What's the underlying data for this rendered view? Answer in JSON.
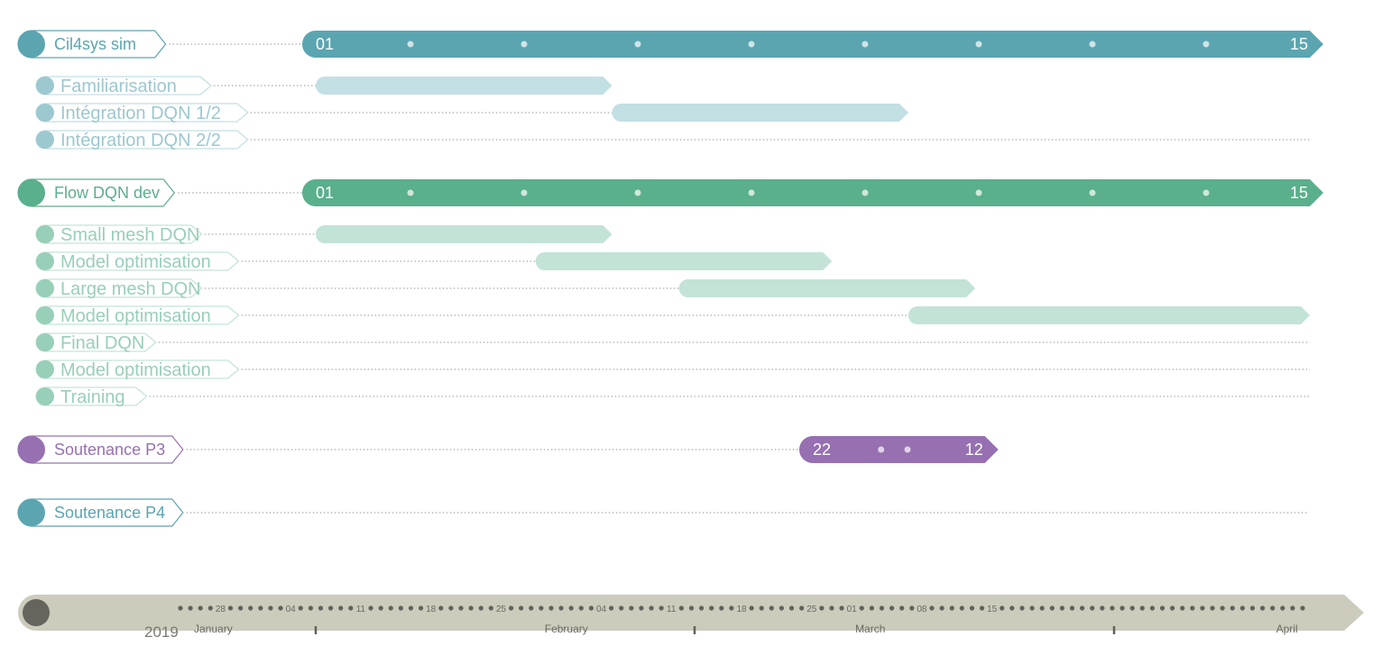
{
  "colors": {
    "teal": "#5ba5b0",
    "teal_light": "#c2dfe3",
    "teal_label_light": "#9cc8cf",
    "green": "#5aaf8c",
    "green_light": "#c3e3d7",
    "green_label_light": "#98cfb8",
    "purple": "#9670b1",
    "timeline_band": "#cccbbc",
    "timeline_dot": "#626058",
    "timeline_text": "#6a6860"
  },
  "groups": [
    {
      "label": "Cil4sys sim",
      "color": "teal",
      "bar": {
        "start": "2019-01-01",
        "end": "2019-04-15",
        "start_label": "01",
        "end_label": "15",
        "tick_count": 8
      },
      "tasks": [
        {
          "label": "Familiarisation",
          "start": "2019-01-01",
          "end": "2019-02-01"
        },
        {
          "label": "Intégration DQN 1/2",
          "start": "2019-02-01",
          "end": "2019-03-04"
        },
        {
          "label": "Intégration DQN 2/2",
          "start": null,
          "end": null
        }
      ]
    },
    {
      "label": "Flow DQN dev",
      "color": "green",
      "bar": {
        "start": "2019-01-01",
        "end": "2019-04-15",
        "start_label": "01",
        "end_label": "15",
        "tick_count": 8
      },
      "tasks": [
        {
          "label": "Small mesh DQN",
          "start": "2019-01-01",
          "end": "2019-02-01"
        },
        {
          "label": "Model optimisation",
          "start": "2019-01-24",
          "end": "2019-02-24"
        },
        {
          "label": "Large mesh DQN",
          "start": "2019-02-08",
          "end": "2019-03-11"
        },
        {
          "label": "Model optimisation",
          "start": "2019-03-04",
          "end": "2019-04-15"
        },
        {
          "label": "Final DQN",
          "start": null,
          "end": null
        },
        {
          "label": "Model optimisation",
          "start": null,
          "end": null
        },
        {
          "label": "Training",
          "start": null,
          "end": null
        }
      ]
    },
    {
      "label": "Soutenance P3",
      "color": "purple",
      "bar": {
        "start": "2019-02-22",
        "end": "2019-03-12",
        "start_label": "22",
        "end_label": "12",
        "tick_count": 2
      },
      "tasks": []
    },
    {
      "label": "Soutenance P4",
      "color": "teal",
      "bar": null,
      "tasks": []
    }
  ],
  "timeline": {
    "year": "2019",
    "start": "2018-12-24",
    "end": "2019-04-15",
    "week_labels": [
      {
        "date": "2018-12-28",
        "label": "28"
      },
      {
        "date": "2019-01-04",
        "label": "04"
      },
      {
        "date": "2019-01-11",
        "label": "11"
      },
      {
        "date": "2019-01-18",
        "label": "18"
      },
      {
        "date": "2019-01-25",
        "label": "25"
      },
      {
        "date": "2019-02-04",
        "label": "04"
      },
      {
        "date": "2019-02-11",
        "label": "11"
      },
      {
        "date": "2019-02-18",
        "label": "18"
      },
      {
        "date": "2019-02-25",
        "label": "25"
      },
      {
        "date": "2019-03-01",
        "label": "01"
      },
      {
        "date": "2019-03-08",
        "label": "08"
      },
      {
        "date": "2019-03-15",
        "label": "15"
      }
    ],
    "months": [
      {
        "label": "January",
        "date": "2018-12-24",
        "divider": false
      },
      {
        "label": "February",
        "date": "2019-01-28",
        "divider": true
      },
      {
        "label": "March",
        "date": "2019-02-28",
        "divider": true
      },
      {
        "label": "April",
        "date": "2019-04-11",
        "divider": true
      }
    ]
  }
}
